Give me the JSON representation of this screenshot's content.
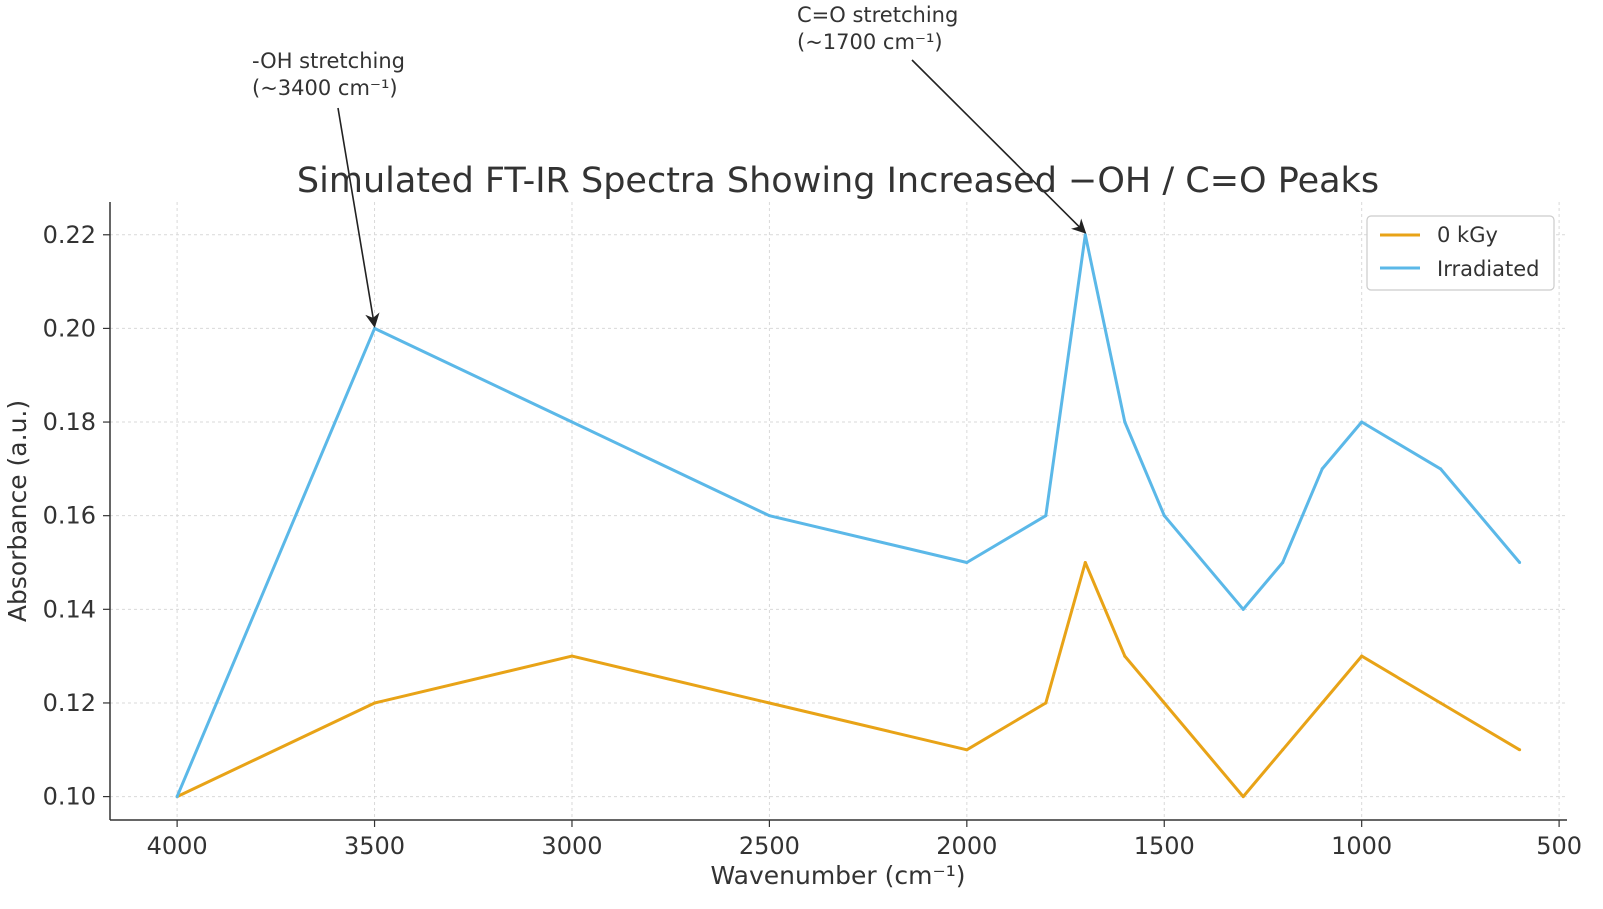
{
  "chart_data": {
    "type": "line",
    "title": "Simulated FT-IR Spectra Showing Increased −OH / C=O Peaks",
    "xlabel": "Wavenumber (cm⁻¹)",
    "ylabel": "Absorbance (a.u.)",
    "xlim": [
      4170,
      480
    ],
    "ylim": [
      0.095,
      0.227
    ],
    "x_inverted": true,
    "grid": true,
    "legend_position": "top-right",
    "x_ticks": [
      4000,
      3500,
      3000,
      2500,
      2000,
      1500,
      1000,
      500
    ],
    "y_ticks": [
      0.1,
      0.12,
      0.14,
      0.16,
      0.18,
      0.2,
      0.22
    ],
    "x_tick_labels": [
      "4000",
      "3500",
      "3000",
      "2500",
      "2000",
      "1500",
      "1000",
      "500"
    ],
    "y_tick_labels": [
      "0.10",
      "0.12",
      "0.14",
      "0.16",
      "0.18",
      "0.20",
      "0.22"
    ],
    "series": [
      {
        "name": "0 kGy",
        "color": "#e8a317",
        "x": [
          4000,
          3500,
          3000,
          2500,
          2000,
          1800,
          1700,
          1600,
          1500,
          1300,
          1200,
          1100,
          1000,
          800,
          600
        ],
        "y": [
          0.1,
          0.12,
          0.13,
          0.12,
          0.11,
          0.12,
          0.15,
          0.13,
          0.12,
          0.1,
          0.11,
          0.12,
          0.13,
          0.12,
          0.11
        ]
      },
      {
        "name": "Irradiated",
        "color": "#5bb8e8",
        "x": [
          4000,
          3500,
          3000,
          2500,
          2000,
          1800,
          1700,
          1600,
          1500,
          1300,
          1200,
          1100,
          1000,
          800,
          600
        ],
        "y": [
          0.1,
          0.2,
          0.18,
          0.16,
          0.15,
          0.16,
          0.22,
          0.18,
          0.16,
          0.14,
          0.15,
          0.17,
          0.18,
          0.17,
          0.15
        ]
      }
    ],
    "annotations": [
      {
        "line1": "-OH stretching",
        "line2": "(~3400 cm⁻¹)",
        "x": 3500,
        "y": 0.2
      },
      {
        "line1": "C=O stretching",
        "line2": "(~1700 cm⁻¹)",
        "x": 1700,
        "y": 0.22
      }
    ]
  }
}
